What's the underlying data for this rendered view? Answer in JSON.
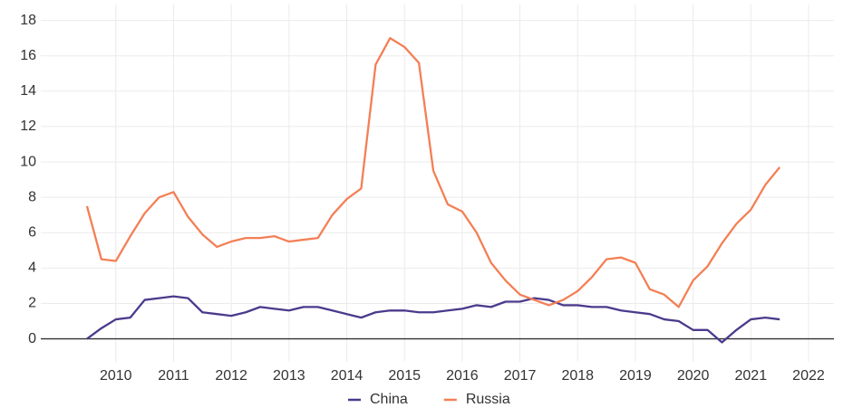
{
  "chart_data": {
    "type": "line",
    "x": [
      2010.0,
      2010.25,
      2010.5,
      2010.75,
      2011.0,
      2011.25,
      2011.5,
      2011.75,
      2012.0,
      2012.25,
      2012.5,
      2012.75,
      2013.0,
      2013.25,
      2013.5,
      2013.75,
      2014.0,
      2014.25,
      2014.5,
      2014.75,
      2015.0,
      2015.25,
      2015.5,
      2015.75,
      2016.0,
      2016.25,
      2016.5,
      2016.75,
      2017.0,
      2017.25,
      2017.5,
      2017.75,
      2018.0,
      2018.25,
      2018.5,
      2018.75,
      2019.0,
      2019.25,
      2019.5,
      2019.75,
      2020.0,
      2020.25,
      2020.5,
      2020.75,
      2021.0,
      2021.25,
      2021.5,
      2021.75,
      2022.0
    ],
    "series": [
      {
        "name": "China",
        "color": "#4b3a8c",
        "values": [
          0,
          0.6,
          1.1,
          1.2,
          2.2,
          2.3,
          2.4,
          2.3,
          1.5,
          1.4,
          1.3,
          1.5,
          1.8,
          1.7,
          1.6,
          1.8,
          1.8,
          1.6,
          1.4,
          1.2,
          1.5,
          1.6,
          1.6,
          1.5,
          1.5,
          1.6,
          1.7,
          1.9,
          1.8,
          2.1,
          2.1,
          2.3,
          2.2,
          1.9,
          1.9,
          1.8,
          1.8,
          1.6,
          1.5,
          1.4,
          1.1,
          1.0,
          0.5,
          0.5,
          -0.2,
          0.5,
          1.1,
          1.2,
          1.1
        ]
      },
      {
        "name": "Russia",
        "color": "#f47f55",
        "values": [
          7.5,
          4.5,
          4.4,
          5.8,
          7.1,
          8.0,
          8.3,
          6.9,
          5.9,
          5.2,
          5.5,
          5.7,
          5.7,
          5.8,
          5.5,
          5.6,
          5.7,
          7.0,
          7.9,
          8.5,
          15.5,
          17.0,
          16.5,
          15.6,
          9.5,
          7.6,
          7.2,
          6.0,
          4.3,
          3.3,
          2.5,
          2.2,
          1.9,
          2.2,
          2.7,
          3.5,
          4.5,
          4.6,
          4.3,
          2.8,
          2.5,
          1.8,
          3.3,
          4.1,
          5.4,
          6.5,
          7.3,
          8.7,
          9.7
        ]
      }
    ],
    "xlim": [
      2009.2,
      2022.94
    ],
    "xticks": [
      {
        "value": 2010.5,
        "label": "2010"
      },
      {
        "value": 2011.5,
        "label": "2011"
      },
      {
        "value": 2012.5,
        "label": "2012"
      },
      {
        "value": 2013.5,
        "label": "2013"
      },
      {
        "value": 2014.5,
        "label": "2014"
      },
      {
        "value": 2015.5,
        "label": "2015"
      },
      {
        "value": 2016.5,
        "label": "2016"
      },
      {
        "value": 2017.5,
        "label": "2017"
      },
      {
        "value": 2018.5,
        "label": "2018"
      },
      {
        "value": 2019.5,
        "label": "2019"
      },
      {
        "value": 2020.5,
        "label": "2020"
      },
      {
        "value": 2021.5,
        "label": "2021"
      },
      {
        "value": 2022.5,
        "label": "2022"
      }
    ],
    "ylim": [
      -1.3,
      18.9
    ],
    "yticks": [
      0,
      2,
      4,
      6,
      8,
      10,
      12,
      14,
      16,
      18
    ],
    "grid": true,
    "legend": "bottom"
  }
}
